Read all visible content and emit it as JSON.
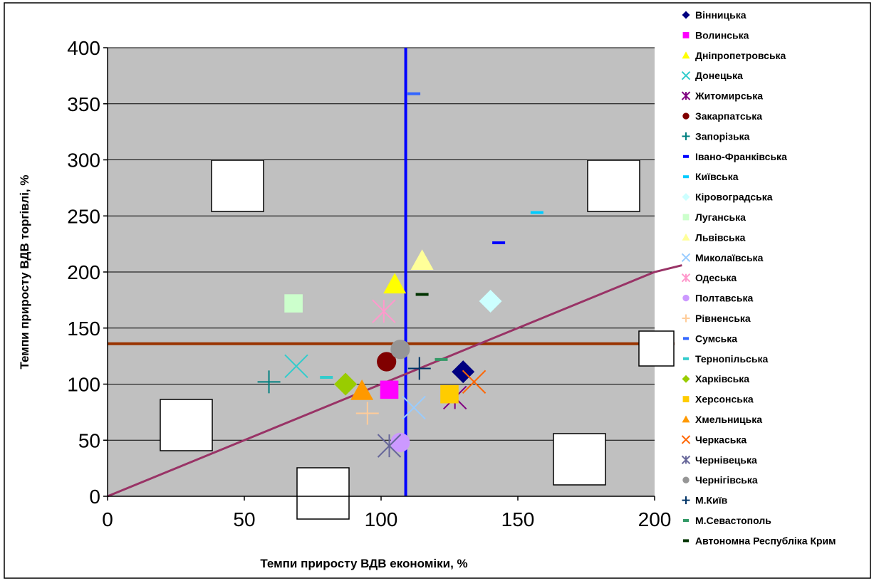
{
  "chart_data": {
    "type": "scatter",
    "title": "",
    "xlabel": "Темпи приросту ВДВ економіки, %",
    "ylabel": "Темпи приросту ВДВ торгівлі, %",
    "xlim": [
      0,
      200
    ],
    "ylim": [
      0,
      400
    ],
    "x_ticks": [
      "0",
      "50",
      "100",
      "150",
      "200"
    ],
    "y_ticks": [
      "0",
      "50",
      "100",
      "150",
      "200",
      "250",
      "300",
      "350",
      "400"
    ],
    "grid": "horizontal",
    "plot_background": "#c0c0c0",
    "legend_position": "right",
    "reference_lines": [
      {
        "orientation": "vertical",
        "x": 109,
        "color": "#0000ff"
      },
      {
        "orientation": "horizontal",
        "y": 136,
        "color": "#993300"
      },
      {
        "orientation": "diagonal",
        "x": [
          0,
          10,
          20,
          30,
          40,
          50,
          60,
          70,
          80,
          90,
          100,
          110,
          120,
          130,
          140,
          150,
          160,
          170,
          180,
          190,
          200,
          210
        ],
        "y": [
          0,
          10,
          20,
          30,
          40,
          50,
          60,
          70,
          80,
          90,
          100,
          110,
          120,
          130,
          140,
          150,
          160,
          170,
          180,
          190,
          200,
          206
        ],
        "color": "#993366"
      }
    ],
    "series": [
      {
        "name": "Вінницька",
        "marker": "diamond",
        "color": "#000080",
        "x": 130,
        "y": 111
      },
      {
        "name": "Волинська",
        "marker": "square",
        "color": "#ff00ff",
        "x": 103,
        "y": 95
      },
      {
        "name": "Дніпропетровська",
        "marker": "triangle",
        "color": "#ffff00",
        "x": 105,
        "y": 189
      },
      {
        "name": "Донецька",
        "marker": "x",
        "color": "#33cccc",
        "x": 69,
        "y": 116
      },
      {
        "name": "Житомирська",
        "marker": "star",
        "color": "#800080",
        "x": 127,
        "y": 88
      },
      {
        "name": "Закарпатська",
        "marker": "circle",
        "color": "#800000",
        "x": 102,
        "y": 120
      },
      {
        "name": "Запорізька",
        "marker": "plus",
        "color": "#008080",
        "x": 59,
        "y": 102
      },
      {
        "name": "Івано-Франківська",
        "marker": "dash",
        "color": "#0000ff",
        "x": 143,
        "y": 226
      },
      {
        "name": "Київська",
        "marker": "dash",
        "color": "#00ccff",
        "x": 157,
        "y": 253
      },
      {
        "name": "Кіровоградська",
        "marker": "diamond",
        "color": "#ccffff",
        "x": 140,
        "y": 174
      },
      {
        "name": "Луганська",
        "marker": "square",
        "color": "#ccffcc",
        "x": 68,
        "y": 172
      },
      {
        "name": "Львівська",
        "marker": "triangle",
        "color": "#ffff99",
        "x": 115,
        "y": 210
      },
      {
        "name": "Миколаївська",
        "marker": "x",
        "color": "#99ccff",
        "x": 112,
        "y": 79
      },
      {
        "name": "Одеська",
        "marker": "star",
        "color": "#ff99cc",
        "x": 101,
        "y": 165
      },
      {
        "name": "Полтавська",
        "marker": "circle",
        "color": "#cc99ff",
        "x": 107,
        "y": 48
      },
      {
        "name": "Рівненська",
        "marker": "plus",
        "color": "#ffcc99",
        "x": 95,
        "y": 74
      },
      {
        "name": "Сумська",
        "marker": "dash",
        "color": "#3366ff",
        "x": 112,
        "y": 359
      },
      {
        "name": "Тернопільська",
        "marker": "dash",
        "color": "#33cccc",
        "x": 80,
        "y": 106
      },
      {
        "name": "Харківська",
        "marker": "diamond",
        "color": "#99cc00",
        "x": 87,
        "y": 100
      },
      {
        "name": "Херсонська",
        "marker": "square",
        "color": "#ffcc00",
        "x": 125,
        "y": 91
      },
      {
        "name": "Хмельницька",
        "marker": "triangle",
        "color": "#ff9900",
        "x": 93,
        "y": 94
      },
      {
        "name": "Черкаська",
        "marker": "x",
        "color": "#ff6600",
        "x": 134,
        "y": 102
      },
      {
        "name": "Чернівецька",
        "marker": "star",
        "color": "#666699",
        "x": 103,
        "y": 45
      },
      {
        "name": "Чернігівська",
        "marker": "circle",
        "color": "#969696",
        "x": 107,
        "y": 131
      },
      {
        "name": "М.Київ",
        "marker": "plus",
        "color": "#003366",
        "x": 114,
        "y": 114
      },
      {
        "name": "М.Севастополь",
        "marker": "dash",
        "color": "#339966",
        "x": 122,
        "y": 122
      },
      {
        "name": "Автономна Республіка Крим",
        "marker": "dash",
        "color": "#003300",
        "x": 115,
        "y": 180
      }
    ]
  }
}
